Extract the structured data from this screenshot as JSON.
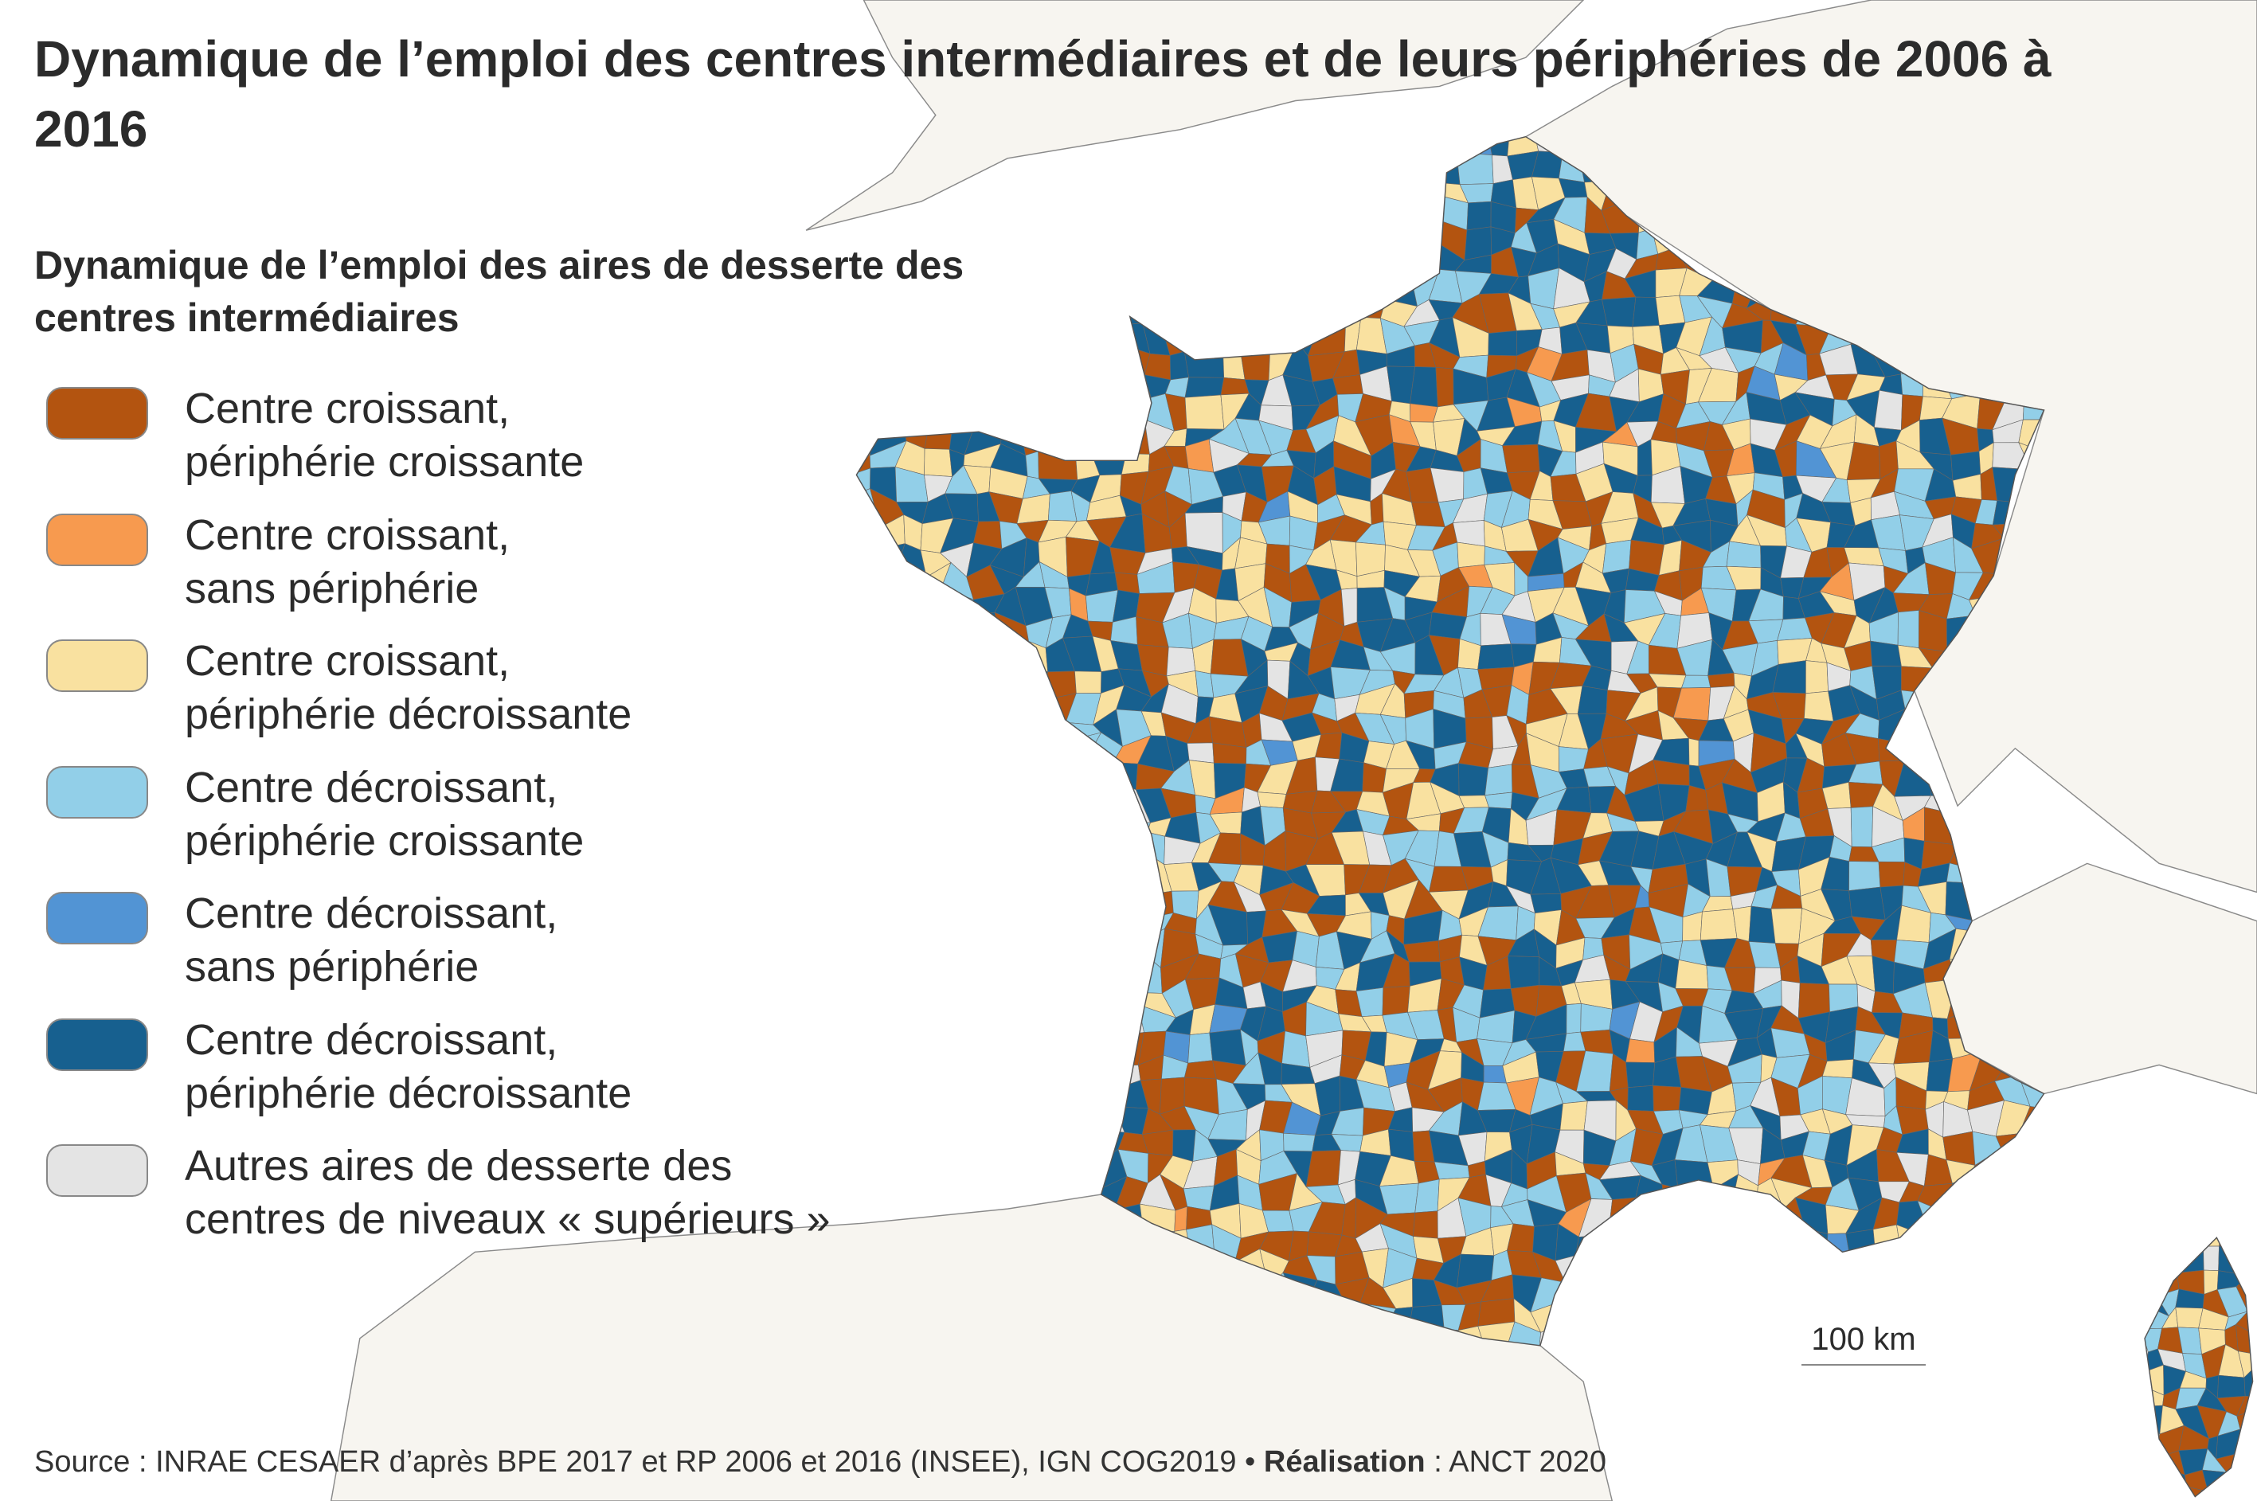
{
  "title": "Dynamique de l’emploi des centres intermédiaires et de leurs périphéries de 2006 à 2016",
  "subtitle": "Dynamique de l’emploi des aires de desserte des centres intermédiaires",
  "legend": [
    {
      "label": "Centre croissant, périphérie croissante",
      "color": "#b35410"
    },
    {
      "label": "Centre croissant, sans périphérie",
      "color": "#f79a4f"
    },
    {
      "label": "Centre croissant, périphérie décroissante",
      "color": "#f9e1a0"
    },
    {
      "label": "Centre décroissant, périphérie croissante",
      "color": "#92cfe8"
    },
    {
      "label": "Centre décroissant, sans périphérie",
      "color": "#5294d4"
    },
    {
      "label": "Centre décroissant, périphérie décroissante",
      "color": "#17608f"
    },
    {
      "label": "Autres aires de desserte des centres de niveaux « supérieurs »",
      "color": "#e4e4e4"
    }
  ],
  "scale_label": "100 km",
  "source": {
    "label": "Source",
    "text": " : INRAE CESAER d’après BPE 2017 et RP 2006 et 2016 (INSEE), IGN COG2019 • ",
    "credit_label": "Réalisation",
    "credit_text": " : ANCT 2020"
  },
  "colors": {
    "land": "#f7f5f0",
    "border": "#8a8a8a"
  }
}
